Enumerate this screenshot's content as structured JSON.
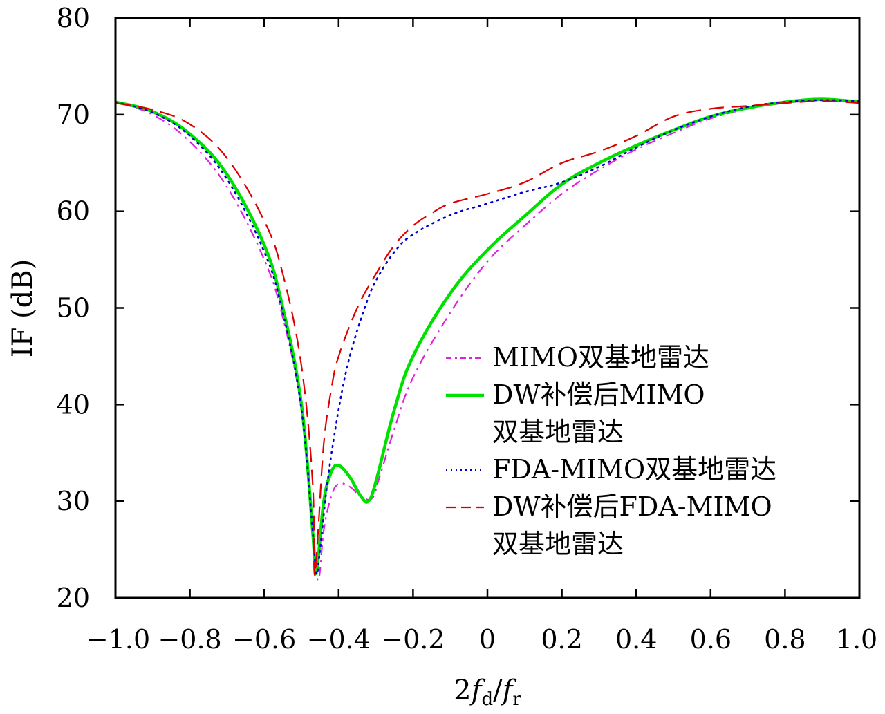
{
  "chart_data": {
    "type": "line",
    "title": "",
    "xlabel": "2f_d/f_r",
    "xlabel_parts": {
      "lead": "2",
      "f1": "f",
      "sub1": "d",
      "slash": "/",
      "f2": "f",
      "sub2": "r"
    },
    "ylabel": "IF (dB)",
    "xlim": [
      -1.0,
      1.0
    ],
    "ylim": [
      20,
      80
    ],
    "x_ticks": [
      -1.0,
      -0.8,
      -0.6,
      -0.4,
      -0.2,
      0,
      0.2,
      0.4,
      0.6,
      0.8,
      1.0
    ],
    "x_tick_labels": [
      "−1.0",
      "−0.8",
      "−0.6",
      "−0.4",
      "−0.2",
      "0",
      "0.2",
      "0.4",
      "0.6",
      "0.8",
      "1.0"
    ],
    "y_ticks": [
      20,
      30,
      40,
      50,
      60,
      70,
      80
    ],
    "y_tick_labels": [
      "20",
      "30",
      "40",
      "50",
      "60",
      "70",
      "80"
    ],
    "grid": false,
    "legend_placement": "center-right",
    "series": [
      {
        "name": "MIMO双基地雷达",
        "legend_lines": [
          "MIMO双基地雷达"
        ],
        "color": "#e020e0",
        "style": "dash-dot",
        "x": [
          -1.0,
          -0.9,
          -0.8,
          -0.7,
          -0.6,
          -0.55,
          -0.5,
          -0.47,
          -0.455,
          -0.44,
          -0.42,
          -0.4,
          -0.37,
          -0.34,
          -0.31,
          -0.29,
          -0.25,
          -0.2,
          -0.1,
          0,
          0.1,
          0.2,
          0.3,
          0.4,
          0.5,
          0.6,
          0.7,
          0.8,
          0.9,
          1.0
        ],
        "y": [
          71.3,
          70.0,
          67.2,
          62.5,
          55.0,
          49.0,
          39.5,
          27.0,
          21.8,
          27.0,
          30.5,
          31.8,
          31.5,
          30.5,
          30.3,
          32.5,
          37.5,
          42.8,
          49.5,
          54.8,
          58.5,
          61.8,
          64.3,
          66.4,
          68.1,
          69.6,
          70.6,
          71.2,
          71.5,
          71.4
        ]
      },
      {
        "name": "DW补偿后MIMO双基地雷达",
        "legend_lines": [
          "DW补偿后MIMO",
          "双基地雷达"
        ],
        "color": "#00e000",
        "style": "solid",
        "x": [
          -1.0,
          -0.9,
          -0.8,
          -0.7,
          -0.6,
          -0.55,
          -0.5,
          -0.47,
          -0.46,
          -0.44,
          -0.42,
          -0.4,
          -0.37,
          -0.34,
          -0.32,
          -0.3,
          -0.25,
          -0.2,
          -0.1,
          0,
          0.1,
          0.2,
          0.3,
          0.4,
          0.5,
          0.6,
          0.7,
          0.8,
          0.9,
          1.0
        ],
        "y": [
          71.3,
          70.3,
          68.0,
          63.8,
          56.5,
          50.0,
          40.0,
          27.0,
          22.6,
          30.0,
          33.0,
          33.7,
          32.5,
          30.5,
          30.0,
          32.0,
          39.5,
          45.0,
          51.5,
          56.0,
          59.5,
          62.8,
          65.0,
          66.8,
          68.4,
          69.8,
          70.7,
          71.3,
          71.6,
          71.3
        ]
      },
      {
        "name": "FDA-MIMO双基地雷达",
        "legend_lines": [
          "FDA-MIMO双基地雷达"
        ],
        "color": "#0000cc",
        "style": "dotted",
        "x": [
          -1.0,
          -0.9,
          -0.8,
          -0.7,
          -0.6,
          -0.55,
          -0.5,
          -0.47,
          -0.46,
          -0.45,
          -0.43,
          -0.4,
          -0.37,
          -0.33,
          -0.3,
          -0.25,
          -0.2,
          -0.1,
          0,
          0.1,
          0.2,
          0.3,
          0.4,
          0.5,
          0.6,
          0.7,
          0.8,
          0.9,
          1.0
        ],
        "y": [
          71.3,
          70.2,
          67.8,
          63.3,
          55.8,
          49.5,
          39.5,
          27.0,
          22.5,
          25.0,
          32.0,
          39.5,
          45.0,
          50.0,
          52.8,
          55.8,
          57.6,
          59.6,
          60.8,
          62.0,
          63.0,
          64.6,
          66.6,
          68.4,
          69.8,
          70.8,
          71.3,
          71.5,
          71.4
        ]
      },
      {
        "name": "DW补偿后FDA-MIMO双基地雷达",
        "legend_lines": [
          "DW补偿后FDA-MIMO",
          "双基地雷达"
        ],
        "color": "#dd0000",
        "style": "dashed",
        "x": [
          -1.0,
          -0.9,
          -0.8,
          -0.7,
          -0.6,
          -0.55,
          -0.5,
          -0.47,
          -0.465,
          -0.455,
          -0.44,
          -0.42,
          -0.4,
          -0.35,
          -0.3,
          -0.25,
          -0.2,
          -0.15,
          -0.1,
          0,
          0.1,
          0.2,
          0.3,
          0.4,
          0.5,
          0.6,
          0.7,
          0.8,
          0.9,
          1.0
        ],
        "y": [
          71.2,
          70.5,
          69.0,
          65.5,
          59.0,
          53.5,
          44.0,
          32.0,
          22.5,
          27.0,
          36.0,
          41.5,
          45.0,
          50.0,
          53.5,
          56.5,
          58.5,
          59.8,
          60.8,
          61.8,
          63.0,
          65.0,
          66.2,
          67.8,
          69.8,
          70.6,
          70.9,
          71.2,
          71.4,
          71.2
        ]
      }
    ]
  }
}
